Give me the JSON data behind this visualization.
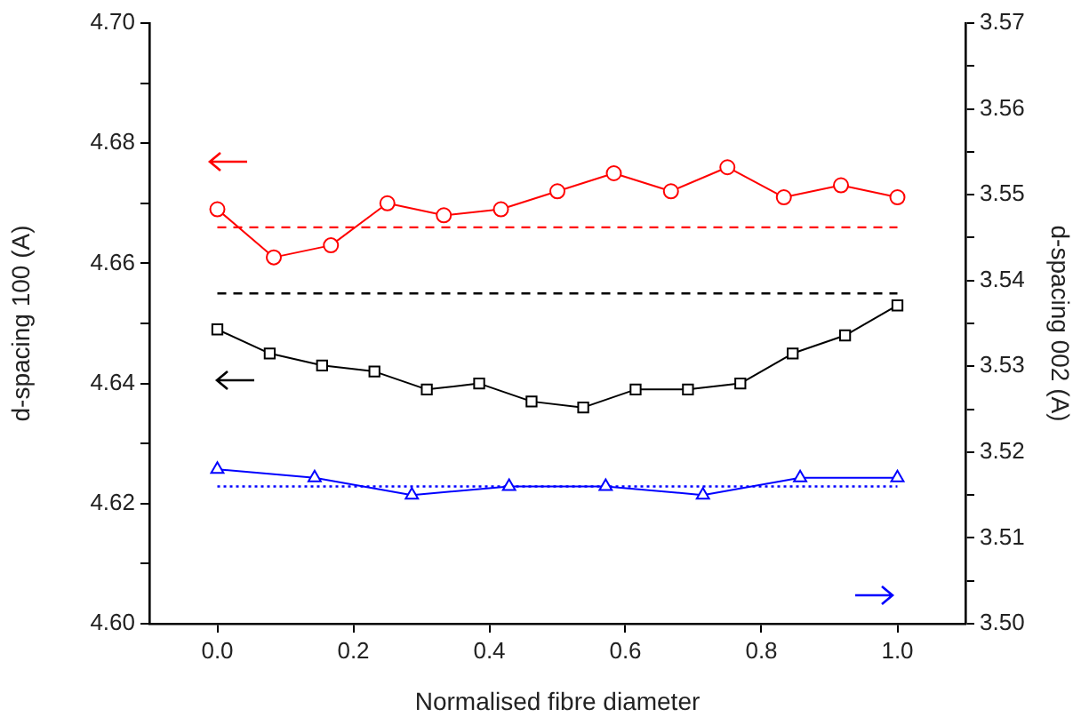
{
  "chart_data": {
    "type": "line",
    "xlabel": "Normalised fibre diameter",
    "ylabel": "d-spacing 100 (A)",
    "y2label": "d-spacing 002 (A)",
    "xlim": [
      -0.1,
      1.1
    ],
    "xticks": [
      {
        "value": 0,
        "label": "0.0"
      },
      {
        "value": 0.2,
        "label": "0.2"
      },
      {
        "value": 0.4,
        "label": "0.4"
      },
      {
        "value": 0.6,
        "label": "0.6"
      },
      {
        "value": 0.8,
        "label": "0.8"
      },
      {
        "value": 1,
        "label": "1.0"
      }
    ],
    "ylim": [
      4.6,
      4.7
    ],
    "yticks": [
      {
        "value": 4.6,
        "label": "4.60"
      },
      {
        "value": 4.61,
        "label": null
      },
      {
        "value": 4.62,
        "label": "4.62"
      },
      {
        "value": 4.63,
        "label": null
      },
      {
        "value": 4.64,
        "label": "4.64"
      },
      {
        "value": 4.65,
        "label": null
      },
      {
        "value": 4.66,
        "label": "4.66"
      },
      {
        "value": 4.67,
        "label": null
      },
      {
        "value": 4.68,
        "label": "4.68"
      },
      {
        "value": 4.69,
        "label": null
      },
      {
        "value": 4.7,
        "label": "4.70"
      }
    ],
    "y2lim": [
      3.5,
      3.57
    ],
    "y2ticks": [
      {
        "value": 3.5,
        "label": "3.50"
      },
      {
        "value": 3.505,
        "label": null
      },
      {
        "value": 3.51,
        "label": "3.51"
      },
      {
        "value": 3.515,
        "label": null
      },
      {
        "value": 3.52,
        "label": "3.52"
      },
      {
        "value": 3.525,
        "label": null
      },
      {
        "value": 3.53,
        "label": "3.53"
      },
      {
        "value": 3.535,
        "label": null
      },
      {
        "value": 3.54,
        "label": "3.54"
      },
      {
        "value": 3.545,
        "label": null
      },
      {
        "value": 3.55,
        "label": "3.55"
      },
      {
        "value": 3.555,
        "label": null
      },
      {
        "value": 3.56,
        "label": "3.56"
      },
      {
        "value": 3.565,
        "label": null
      },
      {
        "value": 3.57,
        "label": "3.57"
      }
    ],
    "series": [
      {
        "color": "#ff0000",
        "marker": "circle",
        "x": [
          0,
          0.083,
          0.167,
          0.25,
          0.333,
          0.417,
          0.5,
          0.583,
          0.667,
          0.75,
          0.833,
          0.917,
          1
        ],
        "values": [
          4.669,
          4.661,
          4.663,
          4.67,
          4.668,
          4.669,
          4.672,
          4.675,
          4.672,
          4.676,
          4.671,
          4.673,
          4.671
        ]
      },
      {
        "color": "#000000",
        "marker": "square",
        "x": [
          0,
          0.077,
          0.154,
          0.231,
          0.308,
          0.385,
          0.462,
          0.538,
          0.615,
          0.692,
          0.769,
          0.846,
          0.923,
          1
        ],
        "values": [
          4.649,
          4.645,
          4.643,
          4.642,
          4.639,
          4.64,
          4.637,
          4.636,
          4.639,
          4.639,
          4.64,
          4.645,
          4.648,
          4.653
        ]
      },
      {
        "color": "#0000ff",
        "marker": "triangle",
        "axis": "y2",
        "x": [
          0,
          0.143,
          0.286,
          0.429,
          0.571,
          0.714,
          0.857,
          1
        ],
        "values": [
          3.518,
          3.517,
          3.515,
          3.516,
          3.516,
          3.515,
          3.517,
          3.517
        ]
      }
    ],
    "ref_lines": [
      {
        "axis": "y",
        "value": 4.666,
        "color": "#ff0000",
        "line_style": "dashed"
      },
      {
        "axis": "y",
        "value": 4.655,
        "color": "#000000",
        "line_style": "dashed"
      },
      {
        "axis": "y2",
        "value": 3.516,
        "color": "#0000ff",
        "line_style": "dotted"
      }
    ],
    "grid": false,
    "legend": false
  }
}
